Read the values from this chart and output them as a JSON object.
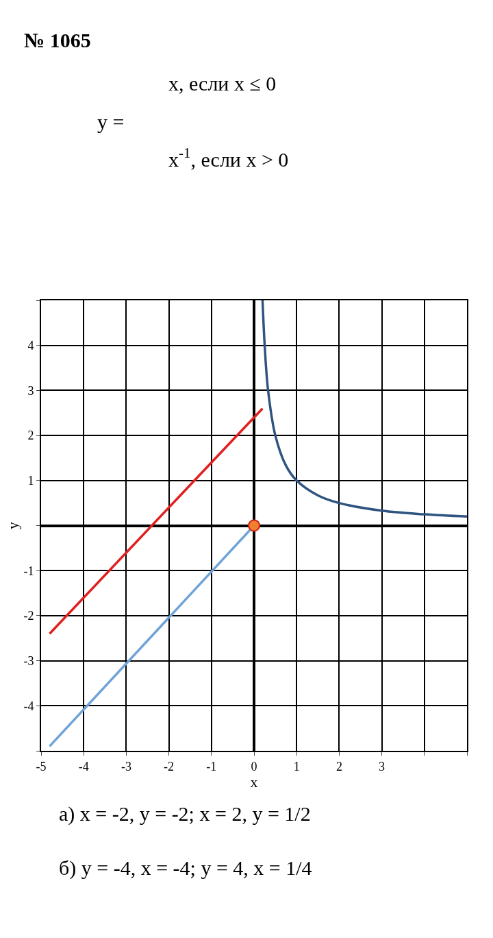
{
  "chart_data": {
    "type": "line",
    "title": "№ 1065",
    "xlabel": "x",
    "ylabel": "y",
    "annotations": [
      "y =",
      "x, если x ≤ 0",
      "x$^{-1}$, если x > 0",
      "а) x = -2, y = -2; x = 2, y = 1/2",
      "б) y = -4, x = -4; y = 4, x = 1/4"
    ],
    "xlim": [
      -5,
      5
    ],
    "ylim": [
      -5,
      5
    ],
    "xticks": [
      -5,
      -4,
      -3,
      -2,
      -1,
      0,
      1,
      2,
      3,
      {
        "value": 4,
        "label": null
      },
      {
        "value": 5,
        "label": null
      }
    ],
    "yticks": [
      {
        "value": -5,
        "label": null
      },
      -4,
      -3,
      -2,
      -1,
      {
        "value": 0,
        "label": null
      },
      1,
      2,
      3,
      4,
      {
        "value": 5,
        "label": null
      }
    ],
    "grid": true,
    "marker": "none",
    "line_style": "solid",
    "series": [
      {
        "color": "#e02020",
        "x": [
          -4.8,
          0.2
        ],
        "values": [
          -2.4,
          2.6
        ]
      },
      {
        "color": "#6fa3d6",
        "x": [
          -4.8,
          0.1
        ],
        "values": [
          -4.9,
          0.1
        ]
      },
      {
        "color": "#2f5480",
        "x": [
          0.2,
          0.25,
          0.33,
          0.5,
          0.75,
          1,
          1.5,
          2,
          3,
          4,
          5
        ],
        "values": [
          5,
          4,
          3,
          2,
          1.33,
          1,
          0.67,
          0.5,
          0.33,
          0.25,
          0.2
        ]
      },
      {
        "type": "scatter",
        "color": "#f08030",
        "marker": "circle",
        "x": [
          0
        ],
        "values": [
          0
        ]
      }
    ]
  }
}
